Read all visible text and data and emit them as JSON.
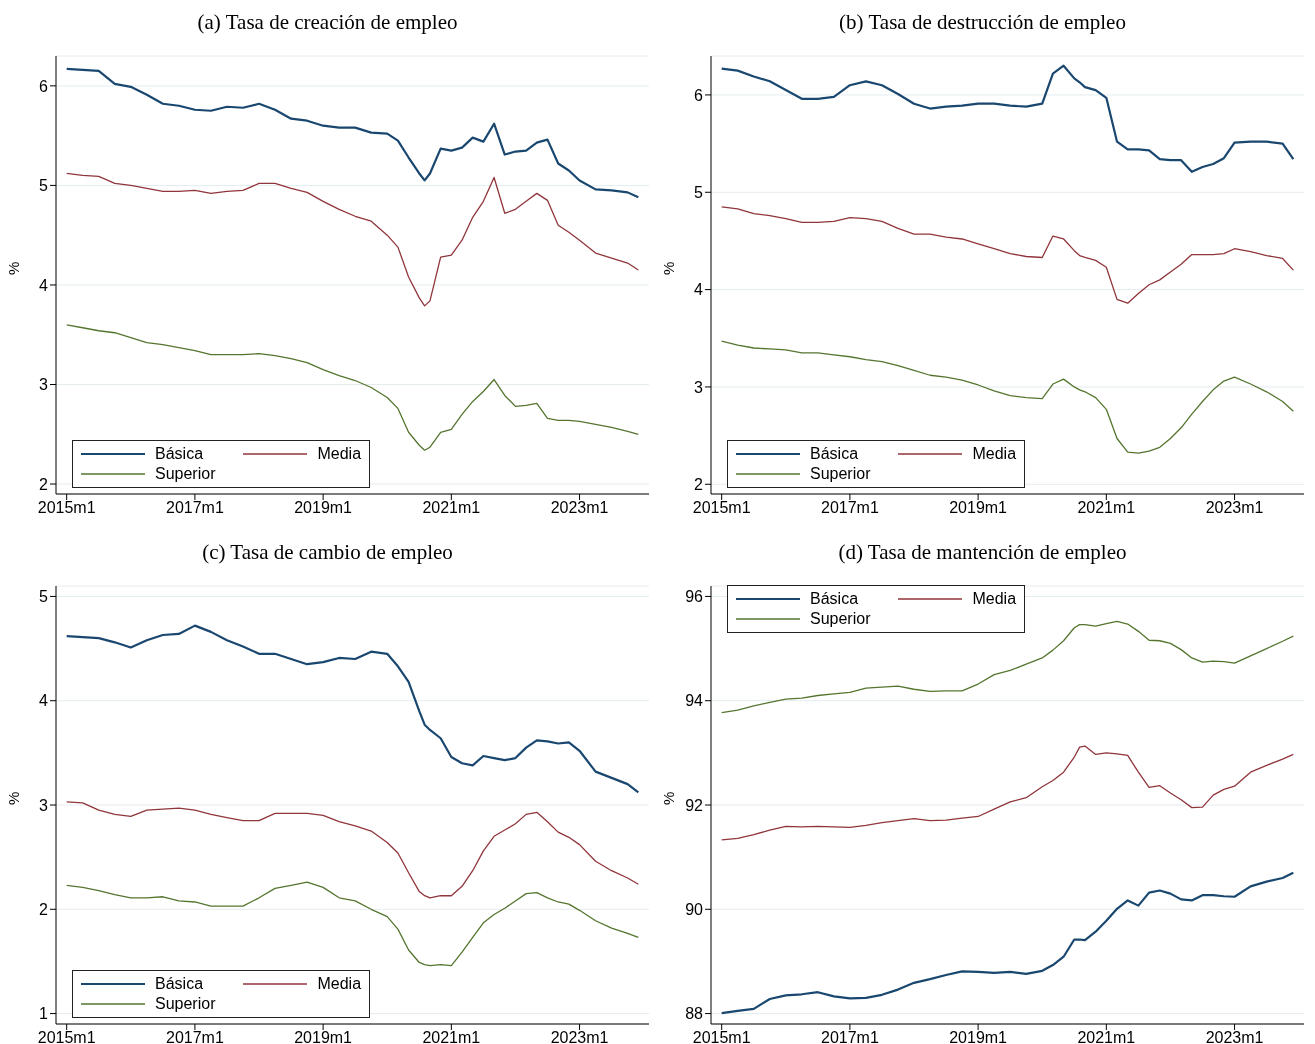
{
  "chart_data": [
    {
      "type": "line",
      "title": "(a) Tasa de creación de empleo",
      "ylabel": "%",
      "grid": "y",
      "legend": "bottom left",
      "marker": "none",
      "line_style": "solid",
      "x": [
        "2015-01",
        "2015-04",
        "2015-07",
        "2015-10",
        "2016-01",
        "2016-04",
        "2016-07",
        "2016-10",
        "2017-01",
        "2017-04",
        "2017-07",
        "2017-10",
        "2018-01",
        "2018-04",
        "2018-07",
        "2018-10",
        "2019-01",
        "2019-04",
        "2019-07",
        "2019-10",
        "2020-01",
        "2020-03",
        "2020-05",
        "2020-07",
        "2020-08",
        "2020-09",
        "2020-11",
        "2021-01",
        "2021-03",
        "2021-05",
        "2021-07",
        "2021-09",
        "2021-11",
        "2022-01",
        "2022-03",
        "2022-05",
        "2022-07",
        "2022-09",
        "2022-11",
        "2023-01",
        "2023-04",
        "2023-07",
        "2023-10",
        "2023-12"
      ],
      "xlim": [
        "2014-11",
        "2024-02"
      ],
      "xticks": [
        {
          "value": "2015-01",
          "label": "2015m1"
        },
        {
          "value": "2017-01",
          "label": "2017m1"
        },
        {
          "value": "2019-01",
          "label": "2019m1"
        },
        {
          "value": "2021-01",
          "label": "2021m1"
        },
        {
          "value": "2023-01",
          "label": "2023m1"
        }
      ],
      "ylim": [
        1.9,
        6.3
      ],
      "yticks": [
        2,
        3,
        4,
        5,
        6
      ],
      "series": [
        {
          "name": "Básica",
          "color": "#1a476f",
          "values": [
            6.17,
            6.16,
            6.15,
            6.02,
            5.99,
            5.91,
            5.82,
            5.8,
            5.76,
            5.75,
            5.79,
            5.78,
            5.82,
            5.76,
            5.67,
            5.65,
            5.6,
            5.58,
            5.58,
            5.53,
            5.52,
            5.45,
            5.28,
            5.12,
            5.05,
            5.12,
            5.37,
            5.35,
            5.38,
            5.48,
            5.44,
            5.62,
            5.31,
            5.34,
            5.35,
            5.43,
            5.46,
            5.22,
            5.15,
            5.05,
            4.96,
            4.95,
            4.93,
            4.88
          ]
        },
        {
          "name": "Media",
          "color": "#90353b",
          "values": [
            5.12,
            5.1,
            5.09,
            5.02,
            5.0,
            4.97,
            4.94,
            4.94,
            4.95,
            4.92,
            4.94,
            4.95,
            5.02,
            5.02,
            4.97,
            4.93,
            4.84,
            4.76,
            4.69,
            4.64,
            4.5,
            4.38,
            4.08,
            3.87,
            3.79,
            3.84,
            4.28,
            4.3,
            4.45,
            4.68,
            4.84,
            5.08,
            4.72,
            4.76,
            4.84,
            4.92,
            4.85,
            4.6,
            4.53,
            4.45,
            4.32,
            4.27,
            4.22,
            4.15
          ]
        },
        {
          "name": "Superior",
          "color": "#55752f",
          "values": [
            3.6,
            3.57,
            3.54,
            3.52,
            3.47,
            3.42,
            3.4,
            3.37,
            3.34,
            3.3,
            3.3,
            3.3,
            3.31,
            3.29,
            3.26,
            3.22,
            3.15,
            3.09,
            3.04,
            2.97,
            2.87,
            2.76,
            2.52,
            2.39,
            2.34,
            2.37,
            2.52,
            2.55,
            2.7,
            2.83,
            2.93,
            3.05,
            2.89,
            2.78,
            2.79,
            2.81,
            2.66,
            2.64,
            2.64,
            2.63,
            2.6,
            2.57,
            2.53,
            2.5
          ]
        }
      ]
    },
    {
      "type": "line",
      "title": "(b) Tasa de destrucción de empleo",
      "ylabel": "%",
      "grid": "y",
      "legend": "bottom left",
      "marker": "none",
      "line_style": "solid",
      "x": [
        "2015-01",
        "2015-04",
        "2015-07",
        "2015-10",
        "2016-01",
        "2016-04",
        "2016-07",
        "2016-10",
        "2017-01",
        "2017-04",
        "2017-07",
        "2017-10",
        "2018-01",
        "2018-04",
        "2018-07",
        "2018-10",
        "2019-01",
        "2019-04",
        "2019-07",
        "2019-10",
        "2020-01",
        "2020-03",
        "2020-05",
        "2020-07",
        "2020-08",
        "2020-09",
        "2020-11",
        "2021-01",
        "2021-03",
        "2021-05",
        "2021-07",
        "2021-09",
        "2021-11",
        "2022-01",
        "2022-03",
        "2022-05",
        "2022-07",
        "2022-09",
        "2022-11",
        "2023-01",
        "2023-04",
        "2023-07",
        "2023-10",
        "2023-12"
      ],
      "xlim": [
        "2014-11",
        "2024-02"
      ],
      "xticks": [
        {
          "value": "2015-01",
          "label": "2015m1"
        },
        {
          "value": "2017-01",
          "label": "2017m1"
        },
        {
          "value": "2019-01",
          "label": "2019m1"
        },
        {
          "value": "2021-01",
          "label": "2021m1"
        },
        {
          "value": "2023-01",
          "label": "2023m1"
        }
      ],
      "ylim": [
        1.9,
        6.4
      ],
      "yticks": [
        2,
        3,
        4,
        5,
        6
      ],
      "series": [
        {
          "name": "Básica",
          "color": "#1a476f",
          "values": [
            6.27,
            6.25,
            6.19,
            6.14,
            6.05,
            5.96,
            5.96,
            5.98,
            6.1,
            6.14,
            6.1,
            6.01,
            5.91,
            5.86,
            5.88,
            5.89,
            5.91,
            5.91,
            5.89,
            5.88,
            5.91,
            6.22,
            6.3,
            6.17,
            6.13,
            6.08,
            6.05,
            5.97,
            5.52,
            5.44,
            5.44,
            5.43,
            5.34,
            5.33,
            5.33,
            5.21,
            5.26,
            5.29,
            5.35,
            5.51,
            5.52,
            5.52,
            5.5,
            5.34
          ]
        },
        {
          "name": "Media",
          "color": "#90353b",
          "values": [
            4.85,
            4.83,
            4.78,
            4.76,
            4.73,
            4.69,
            4.69,
            4.7,
            4.74,
            4.73,
            4.7,
            4.63,
            4.57,
            4.57,
            4.54,
            4.52,
            4.47,
            4.42,
            4.37,
            4.34,
            4.33,
            4.55,
            4.52,
            4.4,
            4.35,
            4.33,
            4.3,
            4.23,
            3.9,
            3.86,
            3.96,
            4.05,
            4.1,
            4.18,
            4.26,
            4.36,
            4.36,
            4.36,
            4.37,
            4.42,
            4.39,
            4.35,
            4.32,
            4.2
          ]
        },
        {
          "name": "Superior",
          "color": "#55752f",
          "values": [
            3.47,
            3.43,
            3.4,
            3.39,
            3.38,
            3.35,
            3.35,
            3.33,
            3.31,
            3.28,
            3.26,
            3.22,
            3.17,
            3.12,
            3.1,
            3.07,
            3.02,
            2.96,
            2.91,
            2.89,
            2.88,
            3.03,
            3.08,
            3.0,
            2.97,
            2.95,
            2.89,
            2.77,
            2.47,
            2.33,
            2.32,
            2.34,
            2.38,
            2.47,
            2.58,
            2.72,
            2.85,
            2.97,
            3.06,
            3.1,
            3.03,
            2.95,
            2.85,
            2.75
          ]
        }
      ]
    },
    {
      "type": "line",
      "title": "(c) Tasa de cambio de empleo",
      "ylabel": "%",
      "grid": "y",
      "legend": "bottom left",
      "marker": "none",
      "line_style": "solid",
      "x": [
        "2015-01",
        "2015-04",
        "2015-07",
        "2015-10",
        "2016-01",
        "2016-04",
        "2016-07",
        "2016-10",
        "2017-01",
        "2017-04",
        "2017-07",
        "2017-10",
        "2018-01",
        "2018-04",
        "2018-07",
        "2018-10",
        "2019-01",
        "2019-04",
        "2019-07",
        "2019-10",
        "2020-01",
        "2020-03",
        "2020-05",
        "2020-07",
        "2020-08",
        "2020-09",
        "2020-11",
        "2021-01",
        "2021-03",
        "2021-05",
        "2021-07",
        "2021-09",
        "2021-11",
        "2022-01",
        "2022-03",
        "2022-05",
        "2022-07",
        "2022-09",
        "2022-11",
        "2023-01",
        "2023-04",
        "2023-07",
        "2023-10",
        "2023-12"
      ],
      "xlim": [
        "2014-11",
        "2024-02"
      ],
      "xticks": [
        {
          "value": "2015-01",
          "label": "2015m1"
        },
        {
          "value": "2017-01",
          "label": "2017m1"
        },
        {
          "value": "2019-01",
          "label": "2019m1"
        },
        {
          "value": "2021-01",
          "label": "2021m1"
        },
        {
          "value": "2023-01",
          "label": "2023m1"
        }
      ],
      "ylim": [
        0.9,
        5.1
      ],
      "yticks": [
        1,
        2,
        3,
        4,
        5
      ],
      "series": [
        {
          "name": "Básica",
          "color": "#1a476f",
          "values": [
            4.62,
            4.61,
            4.6,
            4.56,
            4.51,
            4.58,
            4.63,
            4.64,
            4.72,
            4.66,
            4.58,
            4.52,
            4.45,
            4.45,
            4.4,
            4.35,
            4.37,
            4.41,
            4.4,
            4.47,
            4.45,
            4.33,
            4.18,
            3.9,
            3.77,
            3.72,
            3.64,
            3.46,
            3.4,
            3.38,
            3.47,
            3.45,
            3.43,
            3.45,
            3.55,
            3.62,
            3.61,
            3.59,
            3.6,
            3.52,
            3.32,
            3.26,
            3.2,
            3.12
          ]
        },
        {
          "name": "Media",
          "color": "#90353b",
          "values": [
            3.03,
            3.02,
            2.95,
            2.91,
            2.89,
            2.95,
            2.96,
            2.97,
            2.95,
            2.91,
            2.88,
            2.85,
            2.85,
            2.92,
            2.92,
            2.92,
            2.9,
            2.84,
            2.8,
            2.75,
            2.64,
            2.54,
            2.35,
            2.17,
            2.13,
            2.11,
            2.13,
            2.13,
            2.22,
            2.37,
            2.56,
            2.7,
            2.76,
            2.82,
            2.91,
            2.93,
            2.84,
            2.74,
            2.69,
            2.62,
            2.46,
            2.37,
            2.3,
            2.24
          ]
        },
        {
          "name": "Superior",
          "color": "#55752f",
          "values": [
            2.23,
            2.21,
            2.18,
            2.14,
            2.11,
            2.11,
            2.12,
            2.08,
            2.07,
            2.03,
            2.03,
            2.03,
            2.11,
            2.2,
            2.23,
            2.26,
            2.21,
            2.11,
            2.08,
            2.0,
            1.93,
            1.81,
            1.61,
            1.49,
            1.47,
            1.46,
            1.47,
            1.46,
            1.59,
            1.73,
            1.87,
            1.95,
            2.01,
            2.08,
            2.15,
            2.16,
            2.11,
            2.07,
            2.05,
            1.99,
            1.89,
            1.82,
            1.77,
            1.73
          ]
        }
      ]
    },
    {
      "type": "line",
      "title": "(d) Tasa de mantención de empleo",
      "ylabel": "%",
      "grid": "y",
      "legend": "top left",
      "marker": "none",
      "line_style": "solid",
      "x": [
        "2015-01",
        "2015-04",
        "2015-07",
        "2015-10",
        "2016-01",
        "2016-04",
        "2016-07",
        "2016-10",
        "2017-01",
        "2017-04",
        "2017-07",
        "2017-10",
        "2018-01",
        "2018-04",
        "2018-07",
        "2018-10",
        "2019-01",
        "2019-04",
        "2019-07",
        "2019-10",
        "2020-01",
        "2020-03",
        "2020-05",
        "2020-07",
        "2020-08",
        "2020-09",
        "2020-11",
        "2021-01",
        "2021-03",
        "2021-05",
        "2021-07",
        "2021-09",
        "2021-11",
        "2022-01",
        "2022-03",
        "2022-05",
        "2022-07",
        "2022-09",
        "2022-11",
        "2023-01",
        "2023-04",
        "2023-07",
        "2023-10",
        "2023-12"
      ],
      "xlim": [
        "2014-11",
        "2024-02"
      ],
      "xticks": [
        {
          "value": "2015-01",
          "label": "2015m1"
        },
        {
          "value": "2017-01",
          "label": "2017m1"
        },
        {
          "value": "2019-01",
          "label": "2019m1"
        },
        {
          "value": "2021-01",
          "label": "2021m1"
        },
        {
          "value": "2023-01",
          "label": "2023m1"
        }
      ],
      "ylim": [
        87.8,
        96.2
      ],
      "yticks": [
        88,
        90,
        92,
        94,
        96
      ],
      "series": [
        {
          "name": "Básica",
          "color": "#1a476f",
          "values": [
            88.01,
            88.05,
            88.09,
            88.28,
            88.35,
            88.37,
            88.41,
            88.33,
            88.29,
            88.3,
            88.36,
            88.46,
            88.59,
            88.66,
            88.74,
            88.81,
            88.8,
            88.78,
            88.8,
            88.76,
            88.82,
            88.93,
            89.09,
            89.42,
            89.42,
            89.41,
            89.57,
            89.78,
            90.01,
            90.17,
            90.07,
            90.32,
            90.36,
            90.3,
            90.19,
            90.17,
            90.27,
            90.27,
            90.25,
            90.24,
            90.44,
            90.53,
            90.6,
            90.7
          ]
        },
        {
          "name": "Media",
          "color": "#90353b",
          "values": [
            91.33,
            91.36,
            91.43,
            91.52,
            91.59,
            91.58,
            91.59,
            91.58,
            91.57,
            91.61,
            91.66,
            91.7,
            91.74,
            91.7,
            91.71,
            91.75,
            91.78,
            91.92,
            92.06,
            92.14,
            92.35,
            92.47,
            92.63,
            92.92,
            93.11,
            93.13,
            92.97,
            93.0,
            92.98,
            92.95,
            92.63,
            92.34,
            92.37,
            92.23,
            92.1,
            91.95,
            91.96,
            92.19,
            92.3,
            92.36,
            92.63,
            92.76,
            92.88,
            92.97
          ]
        },
        {
          "name": "Superior",
          "color": "#55752f",
          "values": [
            93.77,
            93.82,
            93.9,
            93.97,
            94.03,
            94.05,
            94.1,
            94.13,
            94.16,
            94.24,
            94.26,
            94.28,
            94.22,
            94.18,
            94.19,
            94.19,
            94.32,
            94.5,
            94.58,
            94.7,
            94.82,
            94.97,
            95.15,
            95.4,
            95.46,
            95.46,
            95.43,
            95.48,
            95.52,
            95.47,
            95.33,
            95.16,
            95.15,
            95.1,
            94.98,
            94.82,
            94.74,
            94.76,
            94.75,
            94.72,
            94.86,
            95.0,
            95.14,
            95.24
          ]
        }
      ]
    }
  ]
}
